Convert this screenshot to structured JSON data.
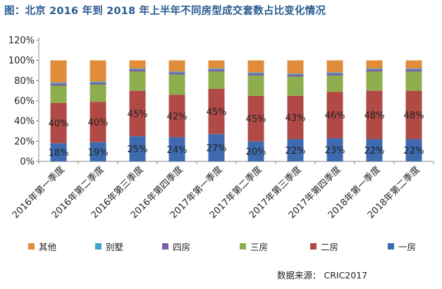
{
  "title": "图：北京 2016 年到 2018 年上半年不同房型成交套数占比变化情况",
  "source": "数据来源： CRIC2017",
  "colors": {
    "一房": "#3e6bb0",
    "二房": "#b14a47",
    "三房": "#8cae4d",
    "四房": "#7b5ea6",
    "别墅": "#3fa5c3",
    "其他": "#e08c3a"
  },
  "legend": [
    "其他",
    "别墅",
    "四房",
    "三房",
    "二房",
    "一房"
  ],
  "chart_data": {
    "type": "bar",
    "stacked": true,
    "title": "图：北京 2016 年到 2018 年上半年不同房型成交套数占比变化情况",
    "xlabel": "",
    "ylabel": "",
    "ylim": [
      0,
      120
    ],
    "yticks": [
      "0%",
      "20%",
      "40%",
      "60%",
      "80%",
      "100%",
      "120%"
    ],
    "categories": [
      "2016年第一季度",
      "2016年第二季度",
      "2016年第三季度",
      "2016年第四季度",
      "2017年第一季度",
      "2017年第二季度",
      "2017年第三季度",
      "2017年第四季度",
      "2018年第一季度",
      "2018年第二季度"
    ],
    "series": [
      {
        "name": "一房",
        "values": [
          18,
          19,
          25,
          24,
          27,
          20,
          22,
          23,
          22,
          22
        ],
        "labels": [
          "18%",
          "19%",
          "25%",
          "24%",
          "27%",
          "20%",
          "22%",
          "23%",
          "22%",
          "22%"
        ]
      },
      {
        "name": "二房",
        "values": [
          40,
          40,
          45,
          42,
          45,
          45,
          43,
          46,
          48,
          48
        ],
        "labels": [
          "40%",
          "40%",
          "45%",
          "42%",
          "45%",
          "45%",
          "43%",
          "46%",
          "48%",
          "48%"
        ]
      },
      {
        "name": "三房",
        "values": [
          17,
          17,
          19,
          20,
          17,
          20,
          19,
          16,
          19,
          19
        ]
      },
      {
        "name": "四房",
        "values": [
          2,
          2,
          2,
          2,
          2,
          2,
          2,
          2,
          2,
          2
        ]
      },
      {
        "name": "别墅",
        "values": [
          1,
          1,
          1,
          1,
          1,
          1,
          1,
          1,
          1,
          1
        ]
      },
      {
        "name": "其他",
        "values": [
          22,
          21,
          8,
          11,
          8,
          12,
          13,
          12,
          8,
          8
        ]
      }
    ],
    "legend_position": "bottom"
  }
}
